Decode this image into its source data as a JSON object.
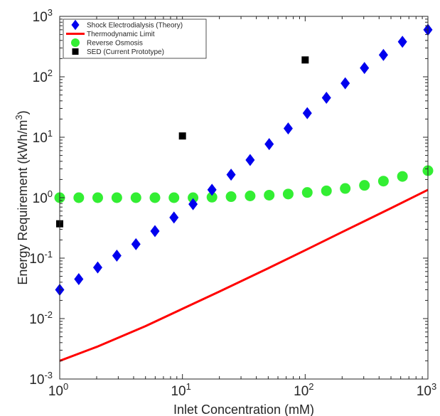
{
  "chart_data": {
    "type": "scatter",
    "xlabel": "Inlet Concentration (mM)",
    "ylabel_main": "Energy Requirement (kWh/m",
    "ylabel_exp": "3",
    "ylabel_close": ")",
    "x_scale": "log",
    "y_scale": "log",
    "xlim": [
      1,
      1000
    ],
    "ylim": [
      0.001,
      1000
    ],
    "x_ticks": [
      {
        "value": 1,
        "base": "10",
        "exp": "0"
      },
      {
        "value": 10,
        "base": "10",
        "exp": "1"
      },
      {
        "value": 100,
        "base": "10",
        "exp": "2"
      },
      {
        "value": 1000,
        "base": "10",
        "exp": "3"
      }
    ],
    "y_ticks": [
      {
        "value": 0.001,
        "base": "10",
        "exp": "-3"
      },
      {
        "value": 0.01,
        "base": "10",
        "exp": "-2"
      },
      {
        "value": 0.1,
        "base": "10",
        "exp": "-1"
      },
      {
        "value": 1,
        "base": "10",
        "exp": "0"
      },
      {
        "value": 10,
        "base": "10",
        "exp": "1"
      },
      {
        "value": 100,
        "base": "10",
        "exp": "2"
      },
      {
        "value": 1000,
        "base": "10",
        "exp": "3"
      }
    ],
    "grid": false,
    "legend_position": "top-left",
    "series": [
      {
        "name": "Shock Electrodialysis (Theory)",
        "kind": "scatter",
        "marker": "diamond",
        "color": "#0000ee",
        "x": [
          1,
          1.43,
          2.04,
          2.92,
          4.18,
          5.97,
          8.53,
          12.2,
          17.4,
          24.9,
          35.6,
          50.9,
          72.7,
          104,
          149,
          212,
          304,
          434,
          620,
          1000
        ],
        "y": [
          0.03,
          0.045,
          0.07,
          0.11,
          0.17,
          0.28,
          0.47,
          0.78,
          1.35,
          2.4,
          4.2,
          7.7,
          14,
          25,
          45,
          78,
          140,
          230,
          380,
          600
        ]
      },
      {
        "name": "Thermodynamic Limit",
        "kind": "line",
        "color": "#ff0000",
        "x": [
          1,
          2,
          5,
          10,
          20,
          50,
          100,
          200,
          500,
          1000
        ],
        "y": [
          0.002,
          0.0034,
          0.0075,
          0.0145,
          0.028,
          0.068,
          0.135,
          0.27,
          0.67,
          1.35
        ]
      },
      {
        "name": "Reverse Osmosis",
        "kind": "scatter",
        "marker": "circle",
        "color": "#33ee33",
        "x": [
          1,
          1.43,
          2.04,
          2.92,
          4.18,
          5.97,
          8.53,
          12.2,
          17.4,
          24.9,
          35.6,
          50.9,
          72.7,
          104,
          149,
          212,
          304,
          434,
          620,
          1000
        ],
        "y": [
          1.0,
          1.0,
          1.0,
          1.0,
          1.0,
          1.0,
          1.0,
          1.0,
          1.02,
          1.04,
          1.07,
          1.1,
          1.15,
          1.22,
          1.3,
          1.42,
          1.6,
          1.88,
          2.25,
          2.8
        ]
      },
      {
        "name": "SED (Current Prototype)",
        "kind": "scatter",
        "marker": "square",
        "color": "#000000",
        "x": [
          1,
          10,
          100
        ],
        "y": [
          0.37,
          10.5,
          190
        ]
      }
    ]
  }
}
